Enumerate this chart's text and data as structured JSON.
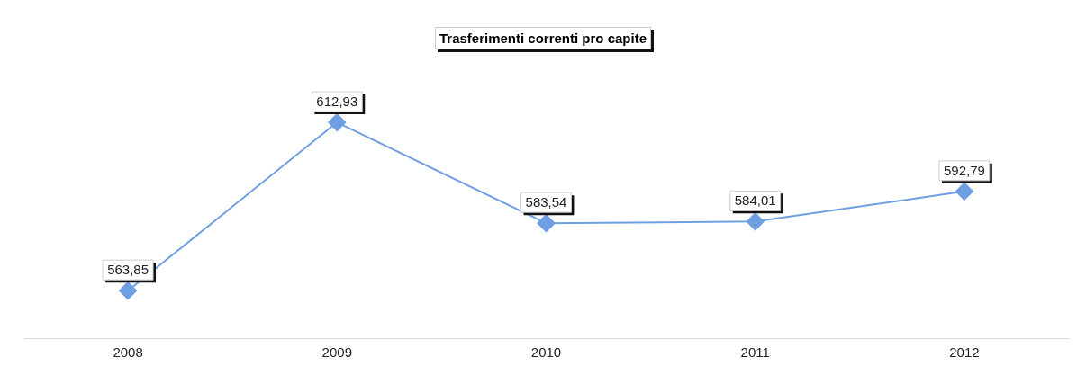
{
  "chart_data": {
    "type": "line",
    "title": "Trasferimenti correnti pro capite",
    "categories": [
      "2008",
      "2009",
      "2010",
      "2011",
      "2012"
    ],
    "series": [
      {
        "color": "#6f9fe3",
        "values": [
          563.85,
          612.93,
          583.54,
          584.01,
          592.79
        ],
        "value_labels": [
          "563,85",
          "612,93",
          "583,54",
          "584,01",
          "592,79"
        ]
      }
    ],
    "relative": false,
    "legend": false,
    "grid": false,
    "marker": "diamond",
    "line_style": "solid"
  }
}
